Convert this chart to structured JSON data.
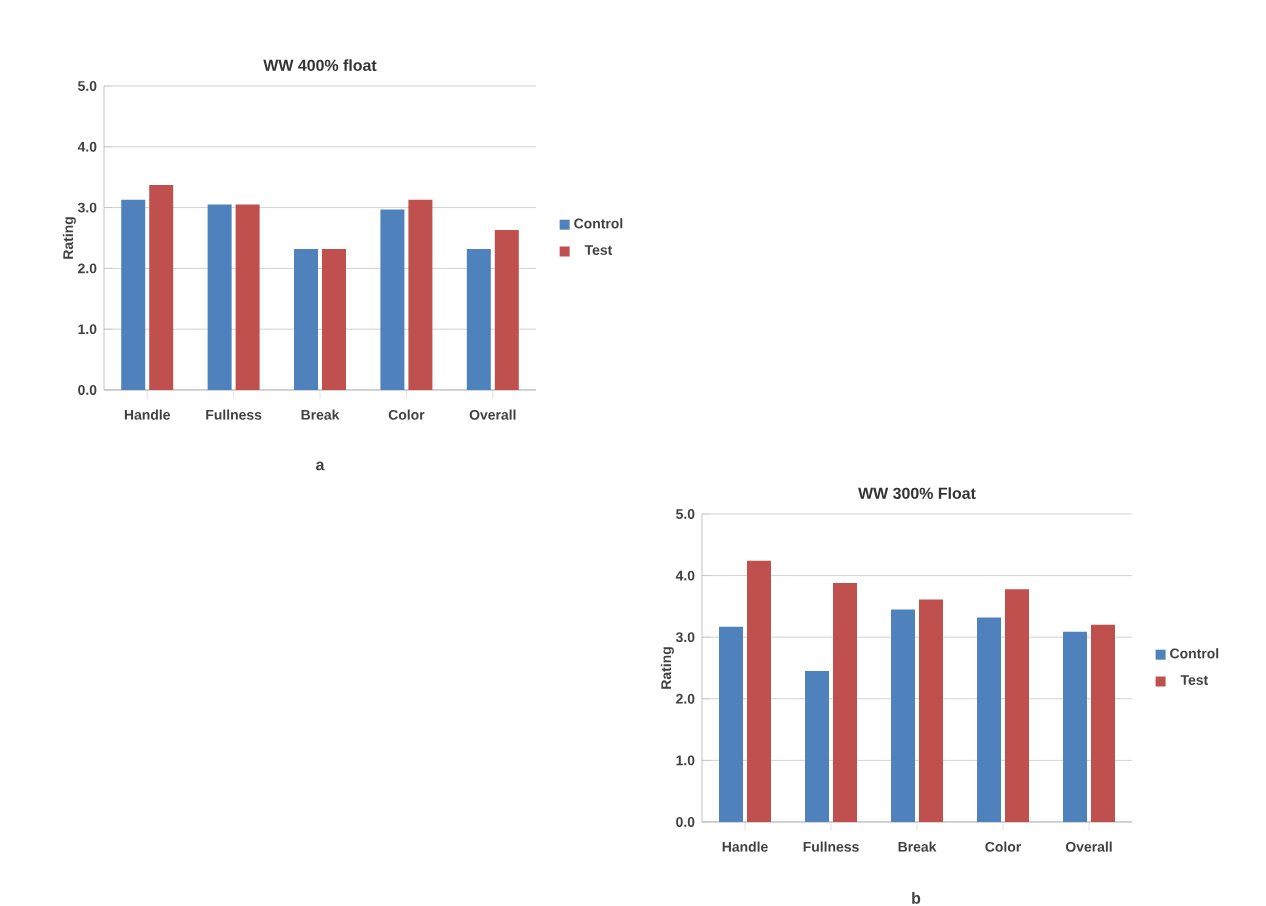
{
  "chart_data": [
    {
      "type": "bar",
      "title": "WW 400% float",
      "ylabel": "Rating",
      "categories": [
        "Handle",
        "Fullness",
        "Break",
        "Color",
        "Overall"
      ],
      "series": [
        {
          "name": "Control",
          "color": "#4f81bd",
          "values": [
            3.13,
            3.05,
            2.32,
            2.97,
            2.32
          ]
        },
        {
          "name": "Test",
          "color": "#c0504d",
          "values": [
            3.37,
            3.05,
            2.32,
            3.13,
            2.63
          ]
        }
      ],
      "ylim": [
        0,
        5
      ],
      "yticks": [
        {
          "value": 0,
          "label": "0.0"
        },
        {
          "value": 1,
          "label": "1.0"
        },
        {
          "value": 2,
          "label": "2.0"
        },
        {
          "value": 3,
          "label": "3.0"
        },
        {
          "value": 4,
          "label": "4.0"
        },
        {
          "value": 5,
          "label": "5.0"
        }
      ],
      "grid": "y",
      "legend": "right",
      "annotations": [
        "a"
      ]
    },
    {
      "type": "bar",
      "title": "WW 300% Float",
      "ylabel": "Rating",
      "categories": [
        "Handle",
        "Fullness",
        "Break",
        "Color",
        "Overall"
      ],
      "series": [
        {
          "name": "Control",
          "color": "#4f81bd",
          "values": [
            3.17,
            2.45,
            3.45,
            3.32,
            3.09
          ]
        },
        {
          "name": "Test",
          "color": "#c0504d",
          "values": [
            4.24,
            3.88,
            3.61,
            3.78,
            3.2
          ]
        }
      ],
      "ylim": [
        0,
        5
      ],
      "yticks": [
        {
          "value": 0,
          "label": "0.0"
        },
        {
          "value": 1,
          "label": "1.0"
        },
        {
          "value": 2,
          "label": "2.0"
        },
        {
          "value": 3,
          "label": "3.0"
        },
        {
          "value": 4,
          "label": "4.0"
        },
        {
          "value": 5,
          "label": "5.0"
        }
      ],
      "grid": "y",
      "legend": "right",
      "annotations": [
        "b"
      ]
    }
  ]
}
